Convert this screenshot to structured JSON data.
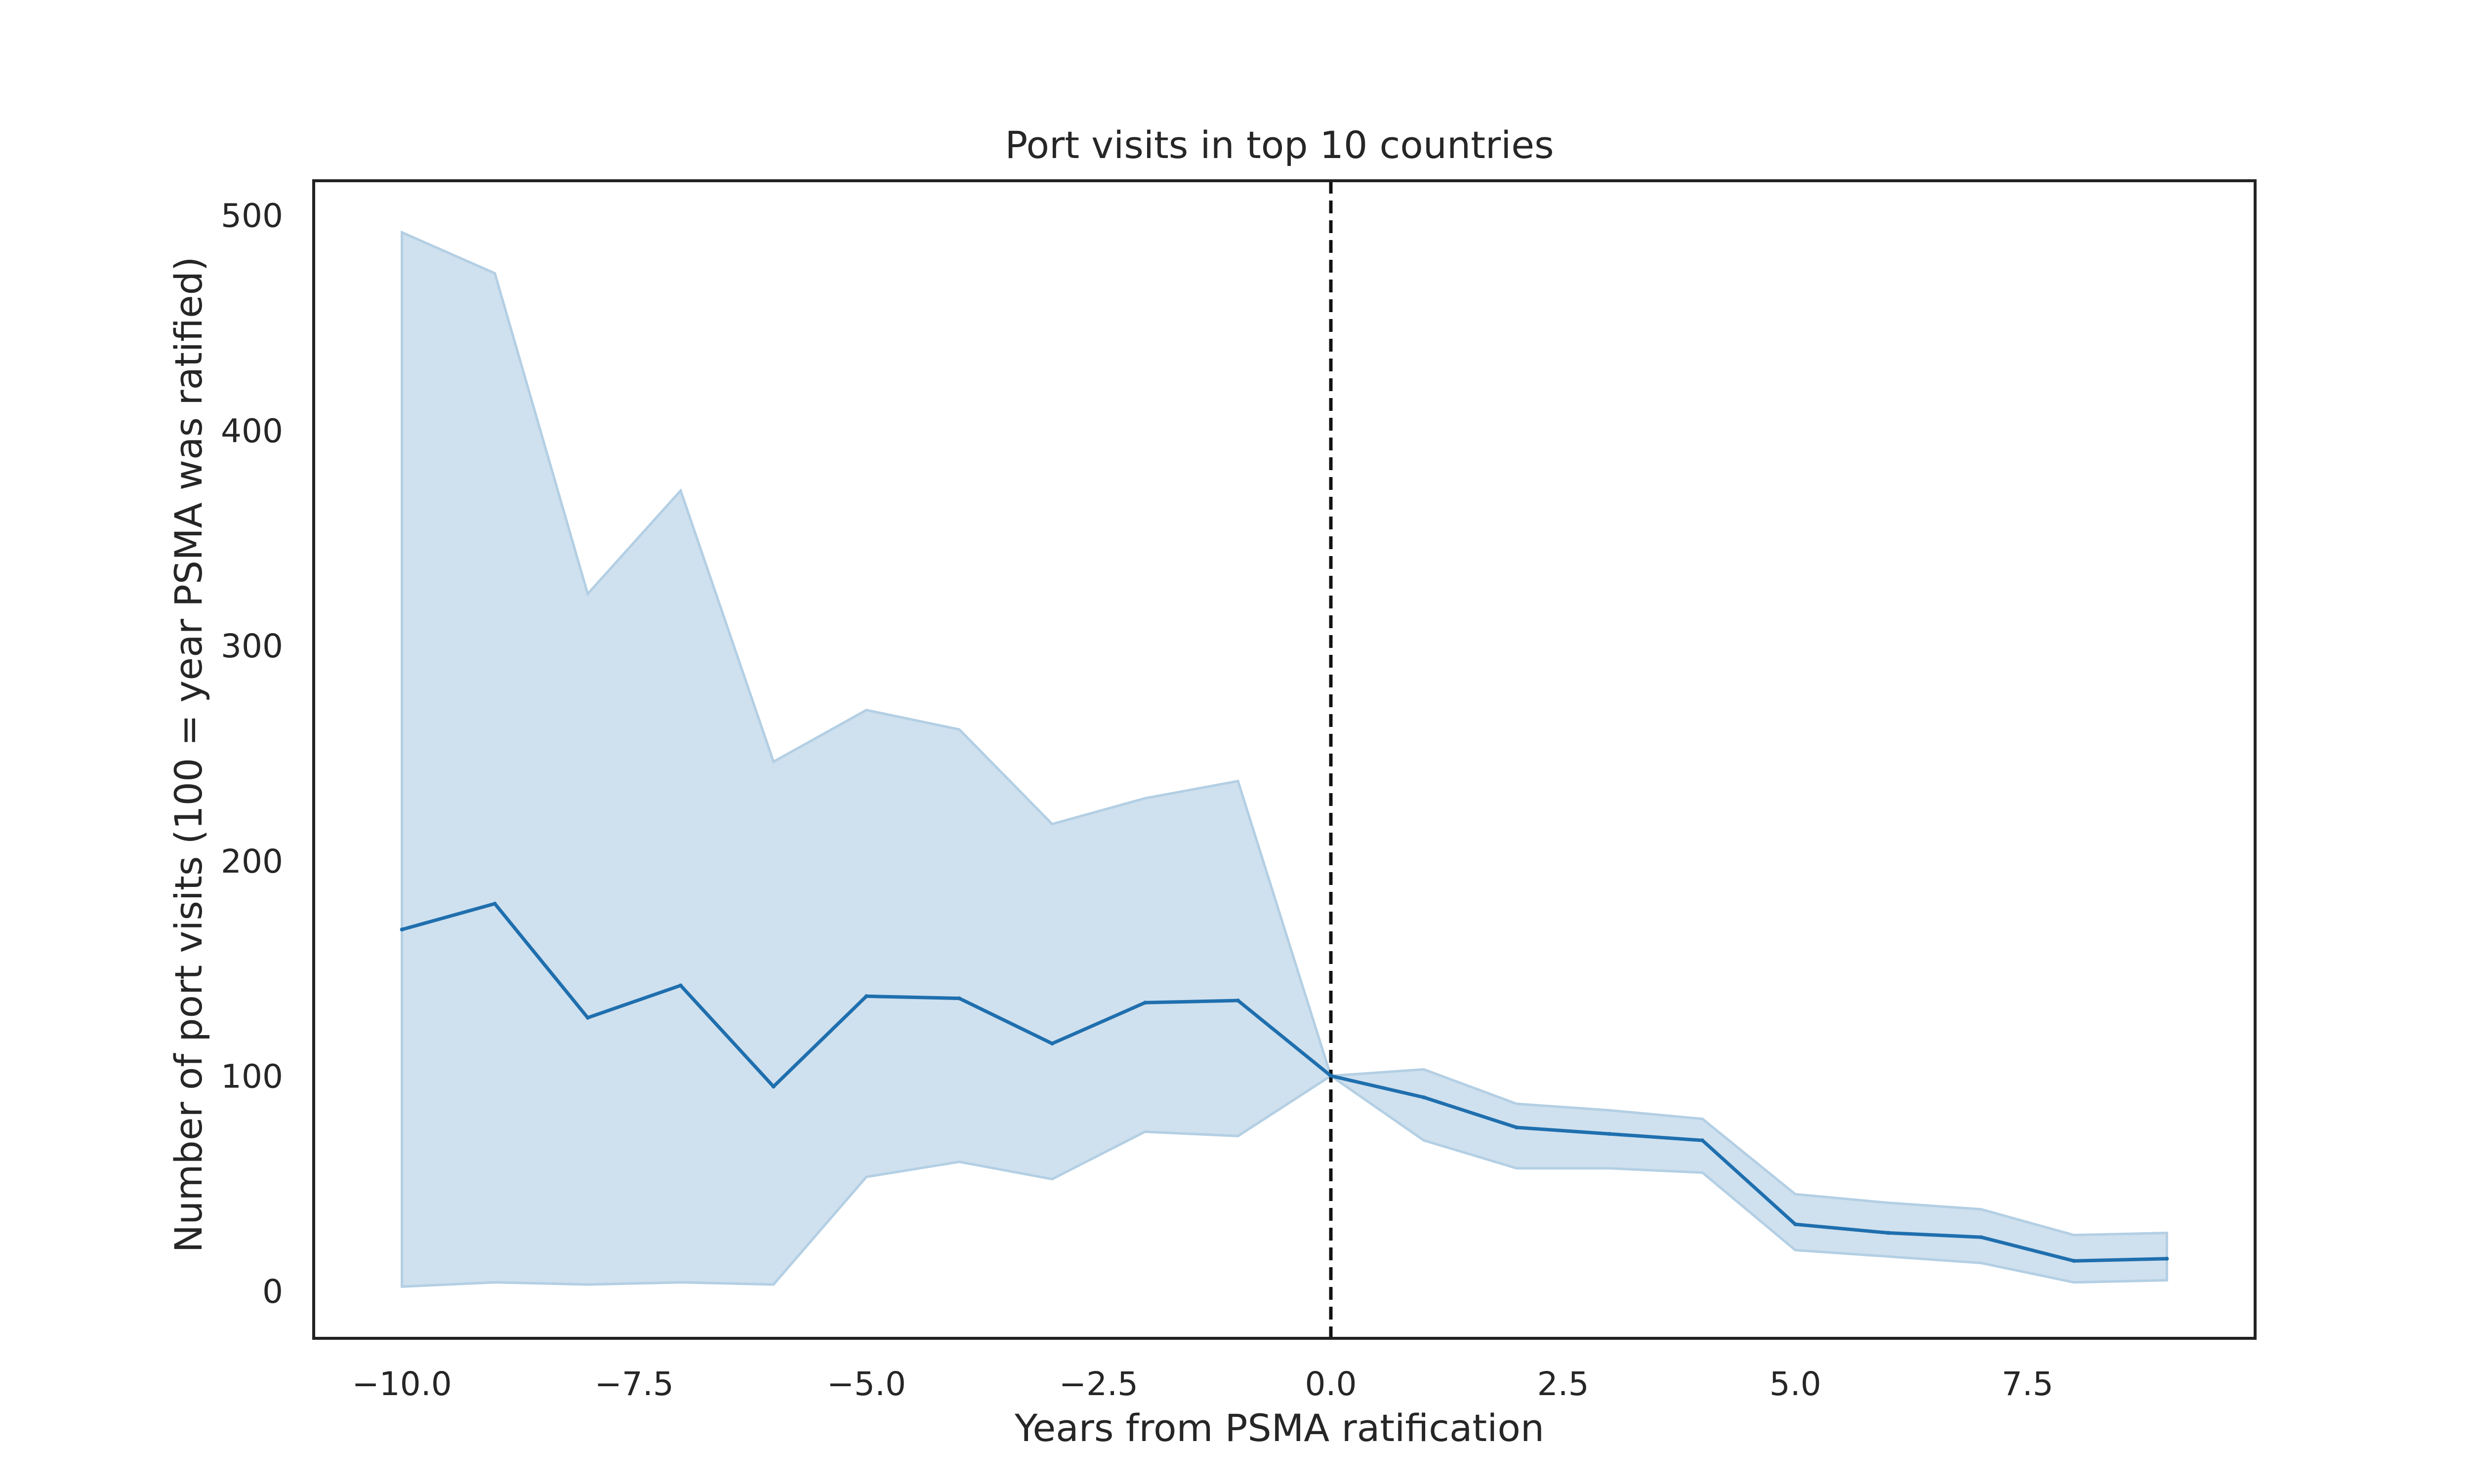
{
  "chart_data": {
    "type": "line",
    "title": "Port visits in top 10 countries",
    "xlabel": "Years from PSMA ratification",
    "ylabel": "Number of port visits (100 = year PSMA was ratified)",
    "xlim": [
      -10.95,
      9.95
    ],
    "ylim": [
      -22,
      516
    ],
    "x_ticks": [
      -10.0,
      -7.5,
      -5.0,
      -2.5,
      0.0,
      2.5,
      5.0,
      7.5
    ],
    "x_tick_labels": [
      "−10.0",
      "−7.5",
      "−5.0",
      "−2.5",
      "0.0",
      "2.5",
      "5.0",
      "7.5"
    ],
    "y_ticks": [
      0,
      100,
      200,
      300,
      400,
      500
    ],
    "y_tick_labels": [
      "0",
      "100",
      "200",
      "300",
      "400",
      "500"
    ],
    "vline_x": 0,
    "vline_style": "dashed",
    "grid": false,
    "legend": "none",
    "colors": {
      "line": "#1f6fae",
      "band": "#cfe0ee",
      "band_edge": "#b3cfe4",
      "vline": "#111111",
      "frame": "#222222"
    },
    "series": [
      {
        "x": [
          -10,
          -9,
          -8,
          -7,
          -6,
          -5,
          -4,
          -3,
          -2,
          -1,
          0,
          1,
          2,
          3,
          4,
          5,
          6,
          7,
          8,
          9
        ],
        "values": [
          168,
          180,
          127,
          142,
          95,
          137,
          136,
          115,
          134,
          135,
          100,
          90,
          76,
          73,
          70,
          31,
          27,
          25,
          14,
          15
        ],
        "ci_lower": [
          2,
          4,
          3,
          4,
          3,
          53,
          60,
          52,
          74,
          72,
          100,
          70,
          57,
          57,
          55,
          19,
          16,
          13,
          4,
          5
        ],
        "ci_upper": [
          492,
          473,
          324,
          372,
          246,
          270,
          261,
          217,
          229,
          237,
          100,
          103,
          87,
          84,
          80,
          45,
          41,
          38,
          26,
          27
        ]
      }
    ]
  }
}
